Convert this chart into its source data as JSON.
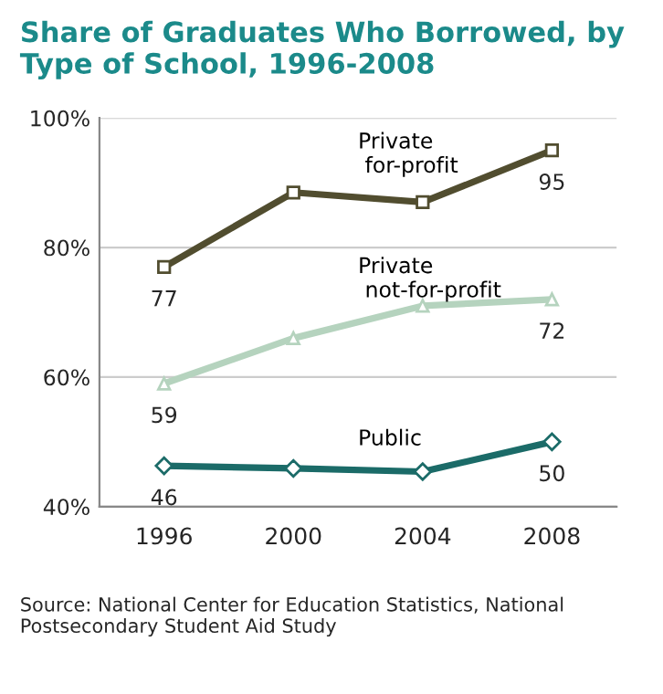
{
  "chart_data": {
    "type": "line",
    "title": "Share of Graduates Who Borrowed, by Type of School, 1996-2008",
    "categories": [
      "1996",
      "2000",
      "2004",
      "2008"
    ],
    "series": [
      {
        "name": "Private\n for-profit",
        "color": "#514d2f",
        "marker": "square",
        "values": [
          77,
          88.5,
          87,
          95
        ],
        "value_labels": [
          "77",
          null,
          null,
          "95"
        ]
      },
      {
        "name": "Private\n not-for-profit",
        "color": "#b5d3be",
        "marker": "triangle",
        "values": [
          59,
          66,
          71,
          72
        ],
        "value_labels": [
          "59",
          null,
          null,
          "72"
        ]
      },
      {
        "name": "Public",
        "color": "#1b6b68",
        "marker": "diamond",
        "values": [
          46.3,
          45.9,
          45.4,
          50
        ],
        "value_labels": [
          "46",
          null,
          null,
          "50"
        ]
      }
    ],
    "ylim": [
      40,
      100
    ],
    "yticks": [
      {
        "value": 40,
        "label": "40%"
      },
      {
        "value": 60,
        "label": "60%"
      },
      {
        "value": 80,
        "label": "80%"
      },
      {
        "value": 100,
        "label": "100%"
      }
    ],
    "grid": "y",
    "legend": false,
    "annotations": [
      "Source: National Center for Education Statistics, National Postsecondary Student Aid Study"
    ]
  }
}
